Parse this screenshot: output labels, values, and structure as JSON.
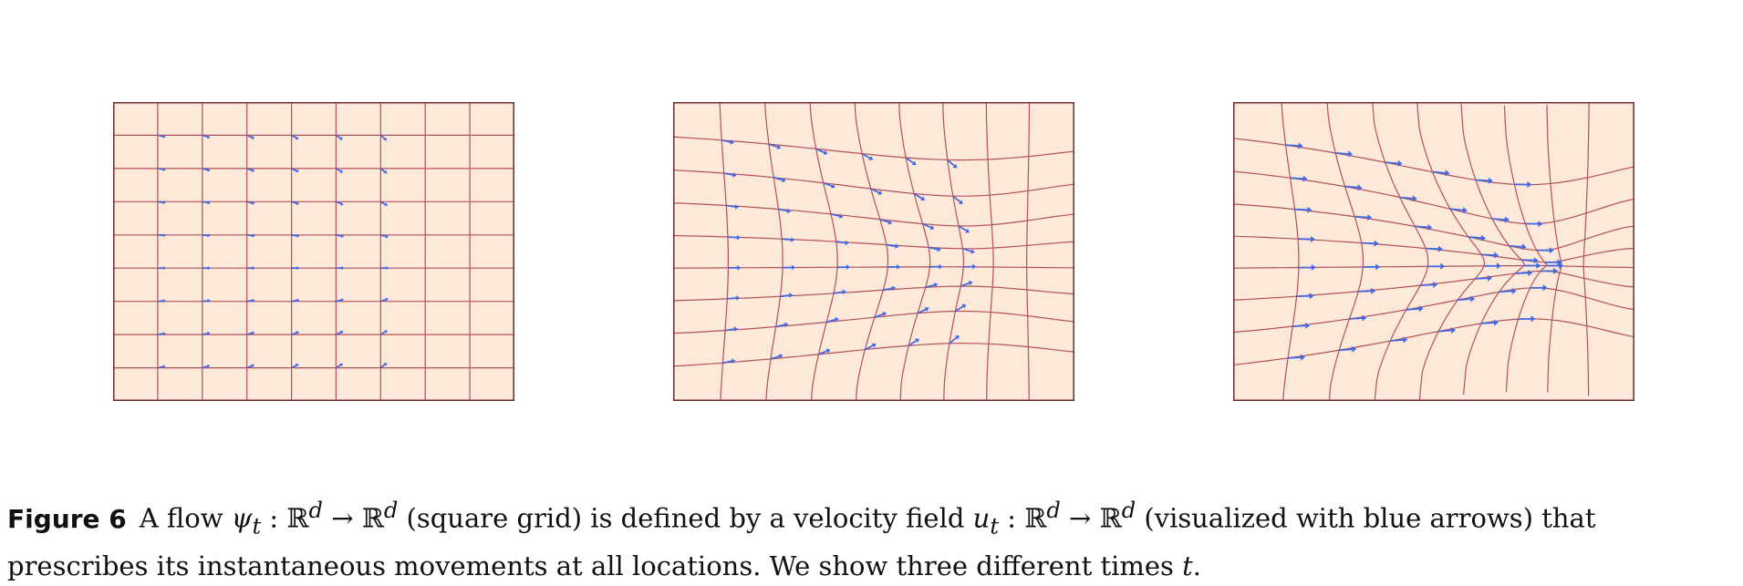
{
  "figure": {
    "label": "Figure 6",
    "caption": {
      "part1": "A flow ",
      "flow_symbol": "ψ",
      "flow_sub": "t",
      "flow_map": " : ℝ",
      "flow_dim1": "d",
      "flow_arrow": " → ℝ",
      "flow_dim2": "d",
      "part2": " (square grid) is defined by a velocity field ",
      "vel_symbol": "u",
      "vel_sub": "t",
      "vel_map": " : ℝ",
      "vel_dim1": "d",
      "vel_arrow": " → ℝ",
      "vel_dim2": "d",
      "part3": " (visualized with blue arrows) that prescribes its instantaneous movements at all locations. We show three different times ",
      "time_symbol": "t",
      "part4": "."
    }
  },
  "style": {
    "background": "#fde9d9",
    "grid_line": "#b4505a",
    "border": "#6b2a30",
    "arrow": "#4169e1"
  },
  "panels": [
    {
      "id": "panel-1",
      "time": "early",
      "distortion": 0.0
    },
    {
      "id": "panel-2",
      "time": "middle",
      "distortion": 0.5
    },
    {
      "id": "panel-3",
      "time": "late",
      "distortion": 1.0
    }
  ]
}
